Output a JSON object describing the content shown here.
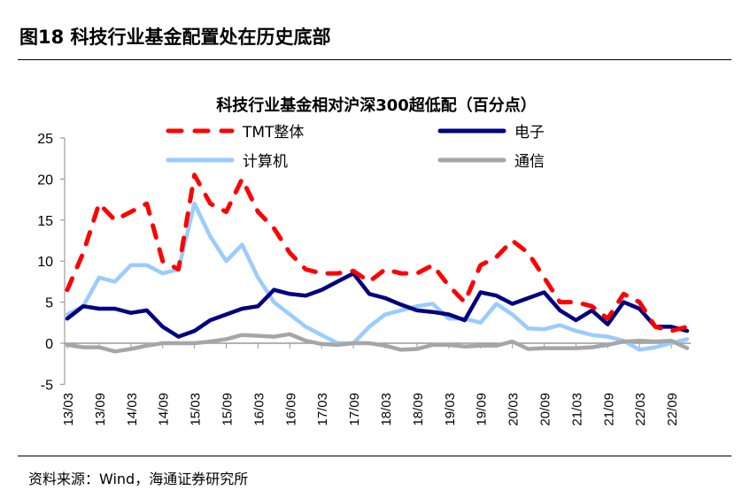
{
  "figure_title": "图18 科技行业基金配置处在历史底部",
  "source": "资料来源：Wind，海通证券研究所",
  "chart_data": {
    "type": "line",
    "title": "科技行业基金相对沪深300超低配（百分点）",
    "xlabel": "",
    "ylabel": "",
    "ylim": [
      -5,
      25
    ],
    "yticks": [
      -5,
      0,
      5,
      10,
      15,
      20,
      25
    ],
    "xticks": [
      "13/03",
      "13/09",
      "14/03",
      "14/09",
      "15/03",
      "15/09",
      "16/03",
      "16/09",
      "17/03",
      "17/09",
      "18/03",
      "18/09",
      "19/03",
      "19/09",
      "20/03",
      "20/09",
      "21/03",
      "21/09",
      "22/03",
      "22/09"
    ],
    "x_note": "quarterly points starting 13/03",
    "series": [
      {
        "name": "TMT整体",
        "color": "#ff0000",
        "style": "dashed",
        "values": [
          6.5,
          11,
          17,
          15,
          16,
          17,
          10,
          9,
          20.5,
          17,
          16,
          20,
          16,
          14,
          11,
          9,
          8.5,
          8.5,
          8.8,
          7.5,
          9,
          8.5,
          8.5,
          9.5,
          7,
          5,
          9.5,
          10.5,
          12.5,
          11,
          8,
          5,
          5,
          4.5,
          3,
          6,
          5,
          2,
          1.5,
          2
        ]
      },
      {
        "name": "电子",
        "color": "#000080",
        "style": "solid",
        "values": [
          3,
          4.5,
          4.2,
          4.2,
          3.7,
          4,
          2,
          0.8,
          1.5,
          2.8,
          3.5,
          4.2,
          4.5,
          6.5,
          6,
          5.8,
          6.5,
          7.5,
          8.5,
          6,
          5.5,
          4.7,
          4,
          3.8,
          3.5,
          2.8,
          6.2,
          5.8,
          4.8,
          5.5,
          6.2,
          4,
          2.8,
          4,
          2.3,
          5,
          4.2,
          2,
          2,
          1.5
        ]
      },
      {
        "name": "计算机",
        "color": "#99ccff",
        "style": "solid",
        "values": [
          3.5,
          4.5,
          8,
          7.5,
          9.5,
          9.5,
          8.5,
          9,
          17,
          13,
          10,
          12,
          8,
          5,
          3.5,
          2,
          1,
          0,
          0,
          2,
          3.5,
          4,
          4.5,
          4.8,
          3,
          3,
          2.5,
          4.8,
          3.5,
          1.8,
          1.7,
          2.2,
          1.5,
          1,
          0.8,
          0.3,
          -0.8,
          -0.5,
          0,
          0.5
        ]
      },
      {
        "name": "通信",
        "color": "#a6a6a6",
        "style": "solid",
        "values": [
          -0.2,
          -0.5,
          -0.5,
          -1,
          -0.7,
          -0.3,
          0,
          0,
          0,
          0.2,
          0.5,
          1,
          0.9,
          0.8,
          1.1,
          0.3,
          -0.1,
          -0.2,
          0,
          0,
          -0.3,
          -0.8,
          -0.7,
          -0.2,
          -0.2,
          -0.4,
          -0.3,
          -0.3,
          0.2,
          -0.7,
          -0.6,
          -0.6,
          -0.6,
          -0.5,
          -0.2,
          0.2,
          0.3,
          0.2,
          0.3,
          -0.6
        ]
      }
    ],
    "legend": "top, two columns"
  }
}
